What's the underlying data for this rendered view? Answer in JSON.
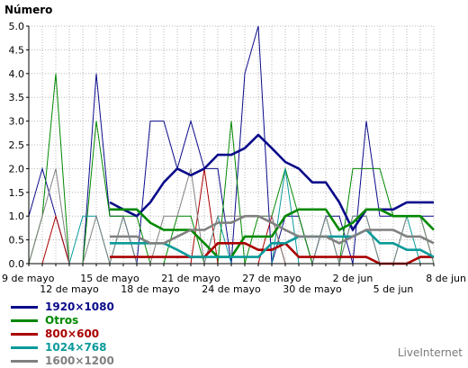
{
  "chart_data": {
    "type": "line",
    "ylabel": "Número",
    "ylim": [
      0,
      5
    ],
    "yticks": [
      "0.0",
      "0.5",
      "1.0",
      "1.5",
      "2.0",
      "2.5",
      "3.0",
      "3.5",
      "4.0",
      "4.5",
      "5.0"
    ],
    "grid": true,
    "legend_position": "bottom-left",
    "xticks": [
      {
        "day": 0,
        "label": "9 de mayo",
        "row": 0
      },
      {
        "day": 3,
        "label": "12 de mayo",
        "row": 1
      },
      {
        "day": 6,
        "label": "15 de mayo",
        "row": 0
      },
      {
        "day": 9,
        "label": "18 de mayo",
        "row": 1
      },
      {
        "day": 12,
        "label": "21 de mayo",
        "row": 0
      },
      {
        "day": 15,
        "label": "24 de mayo",
        "row": 1
      },
      {
        "day": 18,
        "label": "27 de mayo",
        "row": 0
      },
      {
        "day": 21,
        "label": "30 de mayo",
        "row": 1
      },
      {
        "day": 24,
        "label": "2 de jun",
        "row": 0
      },
      {
        "day": 27,
        "label": "5 de jun",
        "row": 1
      },
      {
        "day": 30,
        "label": "8 de jun",
        "row": 0
      }
    ],
    "series": [
      {
        "name": "1600×1200",
        "color": "#808080",
        "width": 1,
        "values": [
          0,
          0,
          0,
          0,
          0,
          0,
          0,
          0,
          0,
          0,
          0,
          0,
          0,
          0,
          0,
          0,
          0,
          0,
          0,
          0,
          0,
          0,
          0,
          0,
          0,
          0,
          0,
          0,
          0,
          0,
          0
        ]
      },
      {
        "name": "1024×768",
        "color": "#0a9a9a",
        "width": 1,
        "values": [
          0,
          0,
          0,
          0,
          0,
          0,
          0,
          0,
          0,
          0,
          0,
          0,
          0,
          0,
          0,
          0,
          0,
          0,
          0,
          0,
          0,
          0,
          0,
          0,
          0,
          0,
          0,
          0,
          0,
          0,
          0
        ]
      }
    ],
    "series_main": [
      {
        "name": "1920×1080",
        "color": "#0a0a8a",
        "values": [
          1.0,
          2.0,
          1.0,
          0.0,
          0.0,
          4.0,
          1.0,
          1.0,
          0.0,
          3.0,
          3.0,
          2.0,
          3.0,
          2.0,
          2.0,
          0.0,
          4.0,
          5.0,
          0.0,
          1.0,
          1.0,
          0.0,
          1.0,
          1.0,
          0.0,
          3.0,
          1.0,
          1.0,
          1.0,
          1.0,
          1.0
        ],
        "avg": [
          null,
          null,
          null,
          null,
          null,
          null,
          1.29,
          1.14,
          1.0,
          1.29,
          1.71,
          2.0,
          1.86,
          2.0,
          2.29,
          2.29,
          2.43,
          2.71,
          2.43,
          2.14,
          2.0,
          1.71,
          1.71,
          1.29,
          0.71,
          1.14,
          1.14,
          1.14,
          1.29,
          1.29,
          1.29
        ]
      },
      {
        "name": "Otros",
        "color": "#008800",
        "values": [
          0.0,
          1.0,
          4.0,
          0.0,
          0.0,
          3.0,
          1.0,
          1.0,
          1.0,
          0.0,
          0.0,
          1.0,
          1.0,
          0.0,
          0.0,
          3.0,
          0.0,
          1.0,
          1.0,
          2.0,
          1.0,
          0.0,
          0.0,
          0.0,
          2.0,
          2.0,
          2.0,
          1.0,
          1.0,
          1.0,
          0.0
        ],
        "avg": [
          null,
          null,
          null,
          null,
          null,
          null,
          1.14,
          1.14,
          1.14,
          0.86,
          0.71,
          0.71,
          0.71,
          0.43,
          0.14,
          0.14,
          0.57,
          0.57,
          0.57,
          1.0,
          1.14,
          1.14,
          1.14,
          0.71,
          0.86,
          1.14,
          1.14,
          1.0,
          1.0,
          1.0,
          0.71
        ]
      },
      {
        "name": "800×600",
        "color": "#aa0000",
        "values": [
          0.0,
          0.0,
          1.0,
          0.0,
          0.0,
          0.0,
          0.0,
          0.0,
          0.0,
          0.0,
          0.0,
          0.0,
          0.0,
          2.0,
          0.0,
          0.0,
          0.0,
          0.0,
          1.0,
          0.0,
          0.0,
          0.0,
          0.0,
          0.0,
          0.0,
          0.0,
          0.0,
          0.0,
          0.0,
          0.0,
          0.0
        ],
        "avg": [
          null,
          null,
          null,
          null,
          null,
          null,
          0.14,
          0.14,
          0.14,
          0.14,
          0.14,
          0.14,
          0.14,
          0.14,
          0.43,
          0.43,
          0.43,
          0.29,
          0.29,
          0.43,
          0.14,
          0.14,
          0.14,
          0.14,
          0.14,
          0.14,
          0.0,
          0.0,
          0.0,
          0.14,
          0.14
        ]
      },
      {
        "name": "1024×768",
        "color": "#0a9a9a",
        "values": [
          0.0,
          0.0,
          0.0,
          0.0,
          1.0,
          1.0,
          0.0,
          1.0,
          0.0,
          0.0,
          0.0,
          0.0,
          0.0,
          0.0,
          1.0,
          0.0,
          0.0,
          0.0,
          0.0,
          2.0,
          0.0,
          0.0,
          1.0,
          0.0,
          1.0,
          1.0,
          0.0,
          0.0,
          1.0,
          0.0,
          0.0
        ],
        "avg": [
          null,
          null,
          null,
          null,
          null,
          null,
          0.43,
          0.43,
          0.43,
          0.43,
          0.43,
          0.29,
          0.14,
          0.14,
          0.14,
          0.14,
          0.14,
          0.14,
          0.43,
          0.43,
          0.57,
          0.57,
          0.57,
          0.57,
          0.57,
          0.71,
          0.43,
          0.43,
          0.29,
          0.29,
          0.14
        ]
      },
      {
        "name": "1600×1200",
        "color": "#808080",
        "values": [
          0.0,
          1.0,
          2.0,
          0.0,
          0.0,
          1.0,
          0.0,
          1.0,
          0.0,
          0.0,
          1.0,
          1.0,
          2.0,
          0.0,
          1.0,
          1.0,
          1.0,
          1.0,
          1.0,
          0.0,
          0.0,
          0.0,
          1.0,
          0.0,
          1.0,
          1.0,
          0.0,
          0.0,
          1.0,
          1.0,
          0.0
        ],
        "avg": [
          null,
          null,
          null,
          null,
          null,
          null,
          0.57,
          0.57,
          0.57,
          0.43,
          0.43,
          0.57,
          0.71,
          0.71,
          0.86,
          0.86,
          1.0,
          1.0,
          0.86,
          0.71,
          0.57,
          0.57,
          0.57,
          0.43,
          0.57,
          0.71,
          0.71,
          0.71,
          0.57,
          0.57,
          0.43
        ]
      }
    ]
  },
  "legend": {
    "items": [
      {
        "name": "1920×1080",
        "color": "#0a0a8a"
      },
      {
        "name": "Otros",
        "color": "#008800"
      },
      {
        "name": "800×600",
        "color": "#aa0000"
      },
      {
        "name": "1024×768",
        "color": "#0a9a9a"
      },
      {
        "name": "1600×1200",
        "color": "#808080"
      }
    ]
  },
  "credit": "LiveInternet"
}
